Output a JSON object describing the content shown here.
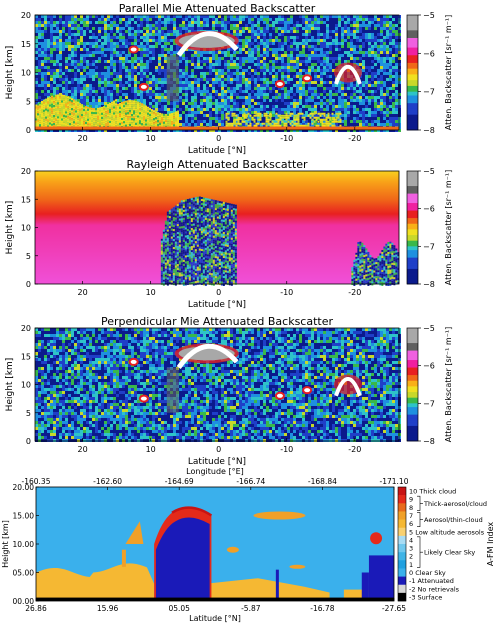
{
  "chart_data": [
    {
      "type": "heatmap",
      "title": "Parallel Mie Attenuated Backscatter",
      "xlabel": "Latitude [°N]",
      "ylabel": "Height [km]",
      "xlim": [
        27,
        -26.5
      ],
      "ylim": [
        0,
        20
      ],
      "xticks": [
        20,
        10,
        0,
        -10,
        -20
      ],
      "yticks": [
        0,
        5,
        10,
        15,
        20
      ],
      "colorbar": {
        "label": "Atten. Backscatter [sr⁻¹ m⁻¹]",
        "range": [
          -8,
          -5
        ],
        "ticks": [
          -5,
          -6,
          -7,
          -8
        ]
      },
      "features": [
        {
          "kind": "cloud",
          "lat": [
            2,
            -2
          ],
          "height": [
            13,
            18
          ]
        },
        {
          "kind": "cloud",
          "lat": [
            -16,
            -22
          ],
          "height": [
            7,
            13
          ]
        },
        {
          "kind": "aerosol",
          "lat": [
            27,
            5
          ],
          "height": [
            0,
            5
          ]
        }
      ]
    },
    {
      "type": "heatmap",
      "title": "Rayleigh Attenuated Backscatter",
      "xlabel": "Latitude [°N]",
      "ylabel": "Height [km]",
      "xlim": [
        27,
        -26.5
      ],
      "ylim": [
        0,
        20
      ],
      "xticks": [
        20,
        10,
        0,
        -10,
        -20
      ],
      "yticks": [
        0,
        5,
        10,
        15,
        20
      ],
      "colorbar": {
        "label": "Atten. Backscatter [sr⁻¹ m⁻¹]",
        "range": [
          -8,
          -5
        ],
        "ticks": [
          -5,
          -6,
          -7,
          -8
        ]
      },
      "features": [
        {
          "kind": "attenuated",
          "lat": [
            8,
            -2
          ],
          "height": [
            0,
            16
          ]
        },
        {
          "kind": "attenuated",
          "lat": [
            -19,
            -26.5
          ],
          "height": [
            0,
            8
          ]
        }
      ]
    },
    {
      "type": "heatmap",
      "title": "Perpendicular Mie Attenuated Backscatter",
      "xlabel": "Latitude [°N]",
      "ylabel": "Height [km]",
      "xlim": [
        27,
        -26.5
      ],
      "ylim": [
        0,
        20
      ],
      "xticks": [
        20,
        10,
        0,
        -10,
        -20
      ],
      "yticks": [
        0,
        5,
        10,
        15,
        20
      ],
      "colorbar": {
        "label": "Atten. Backscatter [sr⁻¹ m⁻¹]",
        "range": [
          -8,
          -5
        ],
        "ticks": [
          -5,
          -6,
          -7,
          -8
        ]
      },
      "features": [
        {
          "kind": "cloud",
          "lat": [
            2,
            -2
          ],
          "height": [
            13,
            18
          ]
        },
        {
          "kind": "cloud",
          "lat": [
            -16,
            -22
          ],
          "height": [
            7,
            13
          ]
        }
      ]
    },
    {
      "type": "heatmap",
      "title": "",
      "xlabel": "Latitude [°N]",
      "x2label": "Longitude [°E]",
      "ylabel": "Height [km]",
      "ylim": [
        0,
        20
      ],
      "xtick_labels": [
        "26.86",
        "15.96",
        "05.05",
        "-5.87",
        "-16.78",
        "-27.65"
      ],
      "x2tick_labels": [
        "-160.35",
        "-162.60",
        "-164.69",
        "-166.74",
        "-168.84",
        "-171.10"
      ],
      "ytick_labels": [
        "00.00",
        "05.00",
        "10.00",
        "15.00",
        "20.00"
      ],
      "colorbar": {
        "label": "A-FM Index",
        "entries": [
          {
            "value": 10,
            "color": "#c81414",
            "text": "10 Thick cloud"
          },
          {
            "value": 9,
            "color": "#e42a1a",
            "text": "9"
          },
          {
            "value": 8,
            "color": "#e86a1c",
            "text": "8"
          },
          {
            "value": 7,
            "color": "#f0a028",
            "text": "7"
          },
          {
            "value": 6,
            "color": "#f5b833",
            "text": "6"
          },
          {
            "value": 5,
            "color": "#f8d070",
            "text": "5 Low altitude aerosols"
          },
          {
            "value": 4,
            "color": "#a8dcf4",
            "text": "4"
          },
          {
            "value": 3,
            "color": "#70c8ee",
            "text": "3"
          },
          {
            "value": 2,
            "color": "#40b4e6",
            "text": "2"
          },
          {
            "value": 1,
            "color": "#20a0e0",
            "text": "1"
          },
          {
            "value": 0,
            "color": "#3ab0ec",
            "text": "0 Clear Sky"
          },
          {
            "value": -1,
            "color": "#1a1ab8",
            "text": "-1 Attenuated"
          },
          {
            "value": -2,
            "color": "#d8d8d8",
            "text": "-2 No retrievals"
          },
          {
            "value": -3,
            "color": "#000000",
            "text": "-3 Surface"
          }
        ],
        "groups": [
          {
            "text": "Thick-aerosol/cloud",
            "from": 9,
            "to": 8
          },
          {
            "text": "Aerosol/thin-cloud",
            "from": 7,
            "to": 6
          },
          {
            "text": "Likely Clear Sky",
            "from": 4,
            "to": 1
          }
        ]
      }
    }
  ]
}
